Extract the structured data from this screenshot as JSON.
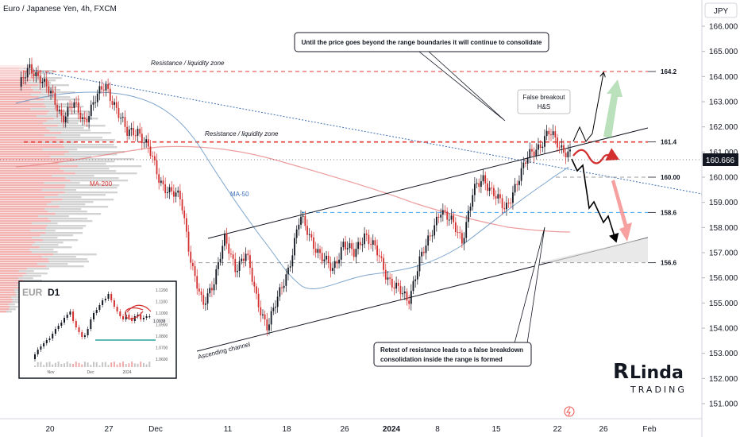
{
  "chart_data": {
    "type": "candlestick",
    "title": "Euro / Japanese Yen, 4h, FXCM",
    "currency": "JPY",
    "current_price": "160.666",
    "y_axis": {
      "ticks": [
        "166.000",
        "165.000",
        "164.000",
        "163.000",
        "162.000",
        "161.000",
        "160.000",
        "159.000",
        "158.000",
        "157.000",
        "156.000",
        "155.000",
        "154.000",
        "153.000",
        "152.000",
        "151.000"
      ],
      "ylim": [
        150.55,
        166.95
      ]
    },
    "x_axis": {
      "ticks": [
        "20",
        "27",
        "Dec",
        "11",
        "18",
        "26",
        "2024",
        "8",
        "15",
        "22",
        "26",
        "Feb"
      ]
    },
    "price_path": [
      [
        "Nov 16",
        163.6
      ],
      [
        "Nov 17",
        164.3
      ],
      [
        "Nov 18",
        164.0
      ],
      [
        "Nov 20",
        163.2
      ],
      [
        "Nov 21",
        162.4
      ],
      [
        "Nov 22",
        162.9
      ],
      [
        "Nov 23",
        162.2
      ],
      [
        "Nov 24",
        163.1
      ],
      [
        "Nov 27",
        163.6
      ],
      [
        "Nov 28",
        162.8
      ],
      [
        "Nov 29",
        161.7
      ],
      [
        "Nov 30",
        161.9
      ],
      [
        "Dec 1",
        161.1
      ],
      [
        "Dec 4",
        159.9
      ],
      [
        "Dec 5",
        159.4
      ],
      [
        "Dec 6",
        159.1
      ],
      [
        "Dec 7",
        156.5
      ],
      [
        "Dec 7b",
        154.8
      ],
      [
        "Dec 8",
        155.9
      ],
      [
        "Dec 11",
        157.5
      ],
      [
        "Dec 12",
        156.4
      ],
      [
        "Dec 13",
        157.0
      ],
      [
        "Dec 14",
        155.1
      ],
      [
        "Dec 15",
        154.1
      ],
      [
        "Dec 18",
        155.2
      ],
      [
        "Dec 19",
        156.5
      ],
      [
        "Dec 20",
        158.4
      ],
      [
        "Dec 21",
        157.6
      ],
      [
        "Dec 22",
        156.8
      ],
      [
        "Dec 25",
        156.3
      ],
      [
        "Dec 26",
        157.4
      ],
      [
        "Dec 27",
        156.9
      ],
      [
        "Dec 28",
        157.8
      ],
      [
        "Dec 29",
        157.1
      ],
      [
        "Jan 1",
        156.1
      ],
      [
        "Jan 2",
        155.6
      ],
      [
        "Jan 3",
        155.0
      ],
      [
        "Jan 4",
        156.7
      ],
      [
        "Jan 5",
        157.5
      ],
      [
        "Jan 8",
        158.8
      ],
      [
        "Jan 9",
        158.2
      ],
      [
        "Jan 10",
        157.5
      ],
      [
        "Jan 11",
        159.4
      ],
      [
        "Jan 12",
        159.9
      ],
      [
        "Jan 15",
        159.4
      ],
      [
        "Jan 16",
        158.6
      ],
      [
        "Jan 17",
        159.8
      ],
      [
        "Jan 18",
        160.7
      ],
      [
        "Jan 19",
        161.2
      ],
      [
        "Jan 22",
        161.8
      ],
      [
        "Jan 23",
        161.2
      ],
      [
        "Jan 24",
        161.0
      ]
    ],
    "levels": [
      {
        "label": "164.2",
        "value": 164.2,
        "color": "#e53935",
        "style": "dashed"
      },
      {
        "label": "161.4",
        "value": 161.4,
        "color": "#e53935",
        "style": "dashed"
      },
      {
        "label": "160.00",
        "value": 160.0,
        "color": "#9e9e9e",
        "style": "dashed"
      },
      {
        "label": "158.6",
        "value": 158.6,
        "color": "#42a5f5",
        "style": "dashed"
      },
      {
        "label": "156.6",
        "value": 156.6,
        "color": "#9e9e9e",
        "style": "dashed"
      }
    ],
    "annotations": {
      "zone_top": "Resistance / liquidity zone",
      "zone_mid": "Resistance / liquidity zone",
      "ma200": "MA-200",
      "ma50": "MA-50",
      "channel": "Ascending channel",
      "hs": [
        "False breakout",
        "H&S"
      ],
      "callout_top": "Until the price goes beyond the range boundaries it will continue to consolidate",
      "callout_bottom": [
        "Retest of resistance leads to a false breakdown",
        "consolidation inside the range is formed"
      ]
    },
    "inset": {
      "title_a": "EUR",
      "title_b": "D1",
      "y_ticks": [
        "1.1200",
        "1.1100",
        "1.1000",
        "1.0900",
        "1.0800",
        "1.0700",
        "1.0600"
      ],
      "x_ticks": [
        "Nov",
        "Dec",
        "2024"
      ],
      "price_label": "1.0938"
    },
    "brand": {
      "line1_a": "R",
      "line1_b": "Linda",
      "line2": "TRADING"
    }
  }
}
